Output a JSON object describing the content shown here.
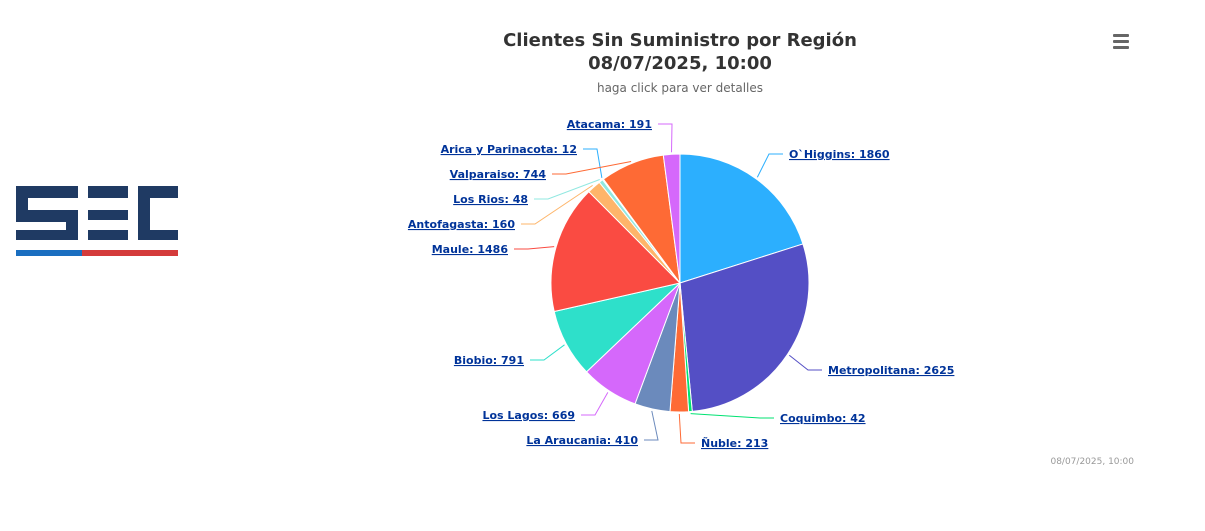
{
  "logo": {
    "text": "SEC",
    "colors": {
      "navy": "#1f3a63",
      "blue": "#1a6ec0",
      "red": "#d43b3b"
    }
  },
  "header": {
    "title_line1": "Clientes Sin Suministro por Región",
    "title_line2": "08/07/2025, 10:00",
    "subtitle": "haga click para ver detalles"
  },
  "menu": {
    "icon": "hamburger-menu-icon"
  },
  "footer": {
    "timestamp": "08/07/2025, 10:00"
  },
  "chart_data": {
    "type": "pie",
    "title": "Clientes Sin Suministro por Región 08/07/2025, 10:00",
    "subtitle": "haga click para ver detalles",
    "label_format": "{name}: {value}",
    "slices": [
      {
        "name": "O`Higgins",
        "value": 1860,
        "color": "#2caffe"
      },
      {
        "name": "Metropolitana",
        "value": 2625,
        "color": "#544fc5"
      },
      {
        "name": "Coquimbo",
        "value": 42,
        "color": "#00e272"
      },
      {
        "name": "Ñuble",
        "value": 213,
        "color": "#fe6a35"
      },
      {
        "name": "La Araucania",
        "value": 410,
        "color": "#6b8abc"
      },
      {
        "name": "Los Lagos",
        "value": 669,
        "color": "#d568fb"
      },
      {
        "name": "Biobio",
        "value": 791,
        "color": "#2ee0ca"
      },
      {
        "name": "Maule",
        "value": 1486,
        "color": "#fa4b42"
      },
      {
        "name": "Antofagasta",
        "value": 160,
        "color": "#feb56a"
      },
      {
        "name": "Los Rios",
        "value": 48,
        "color": "#91e8e1"
      },
      {
        "name": "Arica y Parinacota",
        "value": 12,
        "color": "#2caffe"
      },
      {
        "name": "Valparaiso",
        "value": 744,
        "color": "#fe6a35"
      },
      {
        "name": "Atacama",
        "value": 191,
        "color": "#d568fb"
      }
    ]
  }
}
